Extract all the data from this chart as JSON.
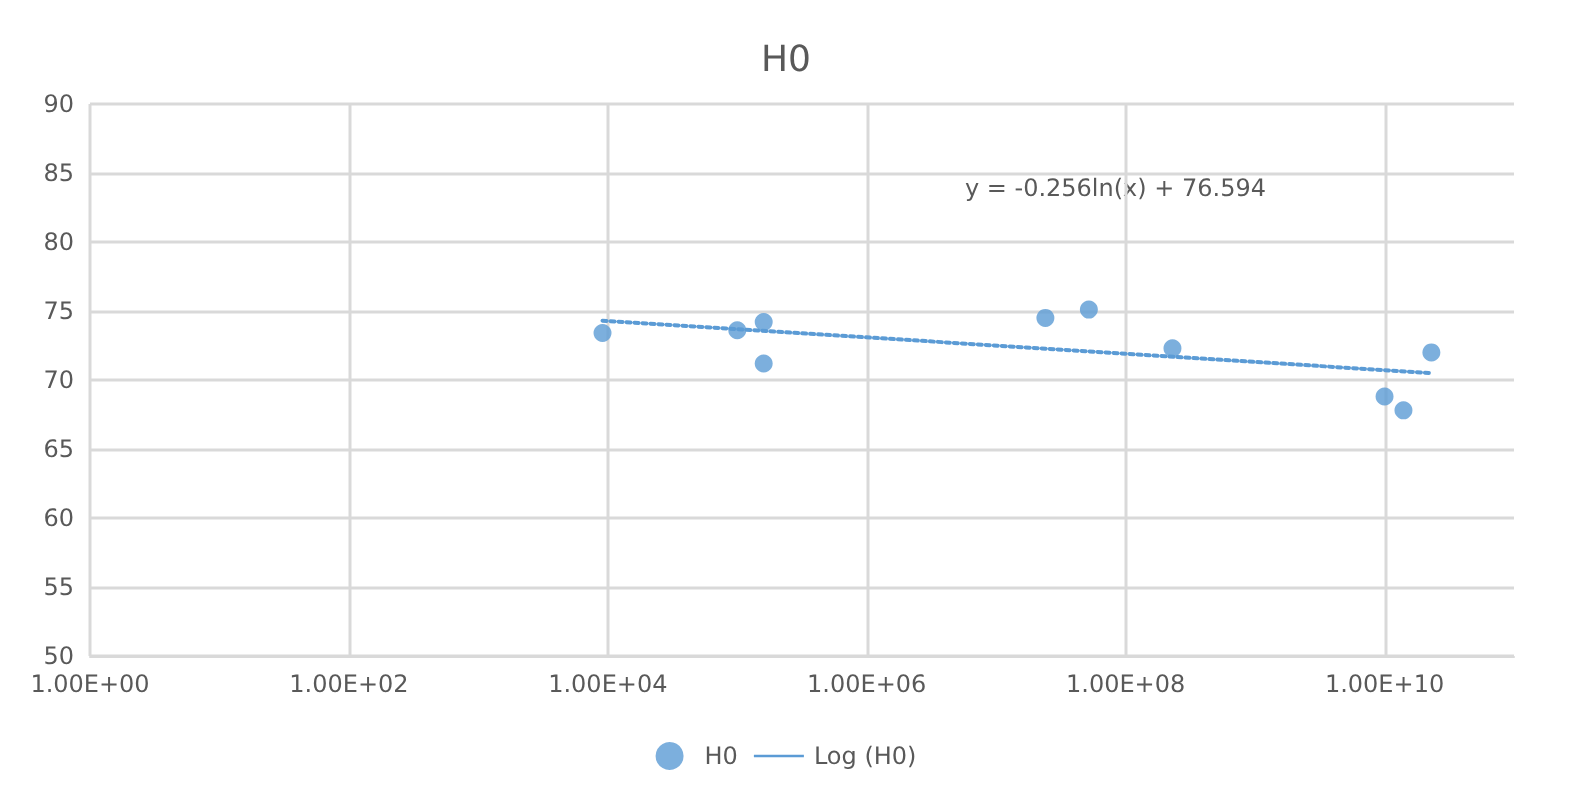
{
  "chart_data": {
    "type": "scatter",
    "title": "H0",
    "annotations": [
      "y = -0.256ln(x) + 76.594"
    ],
    "log": "x",
    "grid": true,
    "legend": "bottom",
    "xlim": [
      1,
      100000000000
    ],
    "ylim": [
      50,
      90
    ],
    "xticks": [
      {
        "value": 1,
        "label": "1.00E+00"
      },
      {
        "value": 100,
        "label": "1.00E+02"
      },
      {
        "value": 10000,
        "label": "1.00E+04"
      },
      {
        "value": 1000000,
        "label": "1.00E+06"
      },
      {
        "value": 100000000,
        "label": "1.00E+08"
      },
      {
        "value": 10000000000,
        "label": "1.00E+10"
      }
    ],
    "yticks": [
      50,
      55,
      60,
      65,
      70,
      75,
      80,
      85,
      90
    ],
    "series": [
      {
        "name": "H0",
        "color": "#5b9bd5",
        "marker": "circle",
        "x": [
          9100,
          100000,
          160000,
          160000,
          24000000,
          52000000,
          230000000,
          23000000000,
          10000000000,
          14000000000
        ],
        "values": [
          73.4,
          73.6,
          74.2,
          71.2,
          74.5,
          75.1,
          72.3,
          72.0,
          68.8,
          67.8
        ]
      },
      {
        "name": "Log (H0)",
        "type": "line",
        "color": "#5b9bd5",
        "marker": "none",
        "line_style": "dotted",
        "x": [
          9100,
          23000000000
        ],
        "values": [
          74.3,
          70.5
        ]
      }
    ]
  }
}
